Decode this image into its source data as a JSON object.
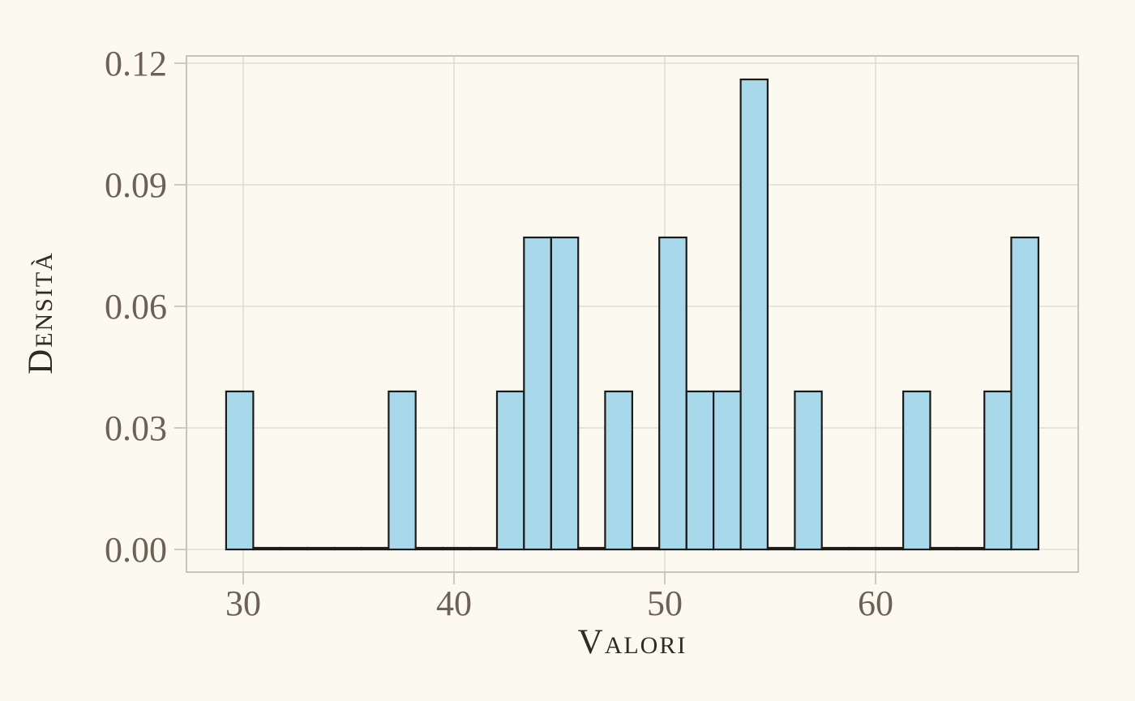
{
  "chart_data": {
    "type": "histogram",
    "title": "",
    "xlabel": "Valori",
    "ylabel": "Densità",
    "xticks": [
      30,
      40,
      50,
      60
    ],
    "xtick_labels": [
      "30",
      "40",
      "50",
      "60"
    ],
    "yticks": [
      0.0,
      0.03,
      0.06,
      0.09,
      0.12
    ],
    "ytick_labels": [
      "0.00",
      "0.03",
      "0.06",
      "0.09",
      "0.12"
    ],
    "xlim": [
      27.3,
      69.6
    ],
    "ylim": [
      -0.005,
      0.122
    ],
    "grid": true,
    "legend": false,
    "n_observations": 20,
    "bin_width": 1.285,
    "bin_edges": [
      29.19,
      30.48,
      31.76,
      33.05,
      34.33,
      35.61,
      36.9,
      38.18,
      39.47,
      40.75,
      42.04,
      43.32,
      44.61,
      45.89,
      47.17,
      48.46,
      49.74,
      51.03,
      52.31,
      53.6,
      54.88,
      56.17,
      57.45,
      58.74,
      60.02,
      61.31,
      62.59,
      63.87,
      65.16,
      66.44,
      67.73
    ],
    "bin_counts": [
      1,
      0,
      0,
      0,
      0,
      0,
      1,
      0,
      0,
      0,
      1,
      2,
      2,
      0,
      1,
      0,
      2,
      1,
      1,
      3,
      0,
      1,
      0,
      0,
      0,
      1,
      0,
      0,
      1,
      2
    ],
    "bin_densities": [
      0.039,
      0,
      0,
      0,
      0,
      0,
      0.039,
      0,
      0,
      0,
      0.039,
      0.077,
      0.077,
      0,
      0.039,
      0,
      0.077,
      0.039,
      0.039,
      0.116,
      0,
      0.039,
      0,
      0,
      0,
      0.039,
      0,
      0,
      0.039,
      0.077
    ],
    "colors": {
      "background": "#fcf9f1",
      "bar_fill": "#a8d9eb",
      "bar_stroke": "#1d1b18",
      "gridline": "#e0ddd5",
      "spine": "#c8c5bd",
      "tick_label": "#6b6155",
      "axis_title": "#302b25"
    }
  }
}
